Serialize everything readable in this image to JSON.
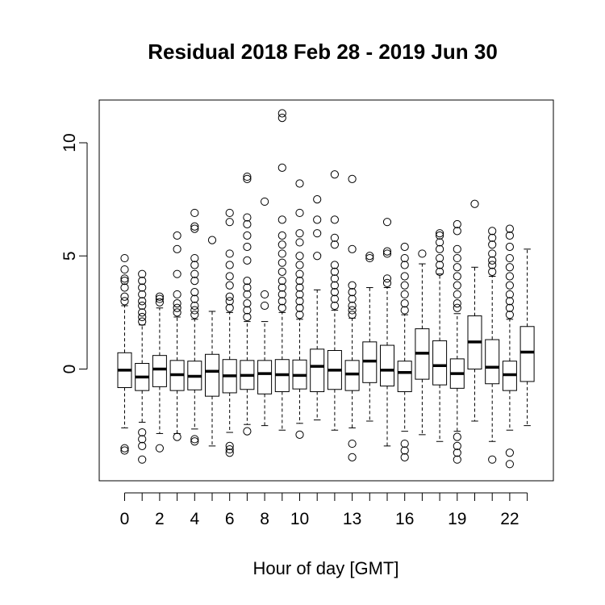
{
  "chart_data": {
    "type": "boxplot",
    "title": "Residual  2018 Feb 28 - 2019 Jun 30",
    "xlabel": "Hour of day [GMT]",
    "ylabel": "",
    "ylim": [
      -4.9,
      12
    ],
    "y_ticks": [
      0,
      5,
      10
    ],
    "x_tick_labels": [
      "0",
      "2",
      "4",
      "6",
      "8",
      "10",
      "13",
      "16",
      "19",
      "22"
    ],
    "x_tick_label_hours": [
      0,
      2,
      4,
      6,
      8,
      10,
      13,
      16,
      19,
      22
    ],
    "grid": false,
    "boxes": [
      {
        "hour": 0,
        "q1": -0.82,
        "median": -0.05,
        "q3": 0.72,
        "whisker_low": -2.6,
        "whisker_high": 2.8,
        "outliers": [
          3.0,
          3.2,
          3.6,
          3.9,
          4.0,
          4.4,
          4.9,
          -3.5,
          -3.6
        ]
      },
      {
        "hour": 1,
        "q1": -0.95,
        "median": -0.35,
        "q3": 0.25,
        "whisker_low": -2.35,
        "whisker_high": 1.95,
        "outliers": [
          2.1,
          2.3,
          2.5,
          2.8,
          3.0,
          3.3,
          3.6,
          3.9,
          4.2,
          -2.8,
          -3.1,
          -3.4,
          -4.0
        ]
      },
      {
        "hour": 2,
        "q1": -0.78,
        "median": 0.0,
        "q3": 0.6,
        "whisker_low": -2.85,
        "whisker_high": 2.7,
        "outliers": [
          2.95,
          3.1,
          3.2,
          -3.5
        ]
      },
      {
        "hour": 3,
        "q1": -0.95,
        "median": -0.25,
        "q3": 0.38,
        "whisker_low": -2.85,
        "whisker_high": 2.3,
        "outliers": [
          2.5,
          2.7,
          2.9,
          3.3,
          4.2,
          5.3,
          5.9,
          -3.0
        ]
      },
      {
        "hour": 4,
        "q1": -0.92,
        "median": -0.32,
        "q3": 0.35,
        "whisker_low": -2.65,
        "whisker_high": 2.2,
        "outliers": [
          2.4,
          2.6,
          2.8,
          3.1,
          3.4,
          3.9,
          4.2,
          4.6,
          4.9,
          6.2,
          6.3,
          6.9,
          -3.1,
          -3.2
        ]
      },
      {
        "hour": 5,
        "q1": -1.2,
        "median": -0.1,
        "q3": 0.65,
        "whisker_low": -3.4,
        "whisker_high": 2.55,
        "outliers": [
          5.7
        ]
      },
      {
        "hour": 6,
        "q1": -1.05,
        "median": -0.3,
        "q3": 0.42,
        "whisker_low": -2.8,
        "whisker_high": 2.5,
        "outliers": [
          2.7,
          3.0,
          3.2,
          3.7,
          4.1,
          4.6,
          5.1,
          6.5,
          6.9,
          -3.4,
          -3.55,
          -3.7
        ]
      },
      {
        "hour": 7,
        "q1": -0.9,
        "median": -0.28,
        "q3": 0.38,
        "whisker_low": -2.45,
        "whisker_high": 2.1,
        "outliers": [
          2.3,
          2.6,
          2.9,
          3.3,
          3.6,
          3.9,
          4.8,
          5.4,
          5.9,
          6.4,
          6.7,
          8.4,
          8.5,
          -2.75
        ]
      },
      {
        "hour": 8,
        "q1": -1.1,
        "median": -0.2,
        "q3": 0.38,
        "whisker_low": -2.5,
        "whisker_high": 2.1,
        "outliers": [
          2.8,
          3.3,
          7.4
        ]
      },
      {
        "hour": 9,
        "q1": -1.0,
        "median": -0.25,
        "q3": 0.42,
        "whisker_low": -2.7,
        "whisker_high": 2.5,
        "outliers": [
          2.7,
          3.0,
          3.3,
          3.6,
          3.9,
          4.3,
          4.7,
          5.1,
          5.5,
          5.9,
          6.6,
          8.9,
          11.1,
          11.3
        ]
      },
      {
        "hour": 10,
        "q1": -0.88,
        "median": -0.28,
        "q3": 0.4,
        "whisker_low": -2.4,
        "whisker_high": 2.2,
        "outliers": [
          2.4,
          2.7,
          3.0,
          3.3,
          3.6,
          3.9,
          4.2,
          4.6,
          5.0,
          5.6,
          6.0,
          6.9,
          8.2,
          -2.9
        ]
      },
      {
        "hour": 11,
        "q1": -1.0,
        "median": 0.12,
        "q3": 0.88,
        "whisker_low": -2.25,
        "whisker_high": 3.5,
        "outliers": [
          5.0,
          6.0,
          6.6,
          7.5
        ]
      },
      {
        "hour": 12,
        "q1": -0.9,
        "median": -0.05,
        "q3": 0.82,
        "whisker_low": -2.7,
        "whisker_high": 2.6,
        "outliers": [
          2.8,
          3.1,
          3.4,
          3.7,
          4.0,
          4.3,
          4.6,
          5.5,
          5.8,
          6.6,
          8.6
        ]
      },
      {
        "hour": 13,
        "q1": -0.95,
        "median": -0.22,
        "q3": 0.38,
        "whisker_low": -2.6,
        "whisker_high": 2.25,
        "outliers": [
          2.4,
          2.6,
          2.8,
          3.1,
          3.4,
          3.7,
          5.3,
          8.4,
          -3.3,
          -3.9
        ]
      },
      {
        "hour": 14,
        "q1": -0.6,
        "median": 0.35,
        "q3": 1.2,
        "whisker_low": -2.3,
        "whisker_high": 3.6,
        "outliers": [
          4.9,
          5.0
        ]
      },
      {
        "hour": 15,
        "q1": -0.75,
        "median": -0.05,
        "q3": 1.05,
        "whisker_low": -3.4,
        "whisker_high": 3.6,
        "outliers": [
          3.8,
          4.0,
          5.1,
          5.2,
          6.5
        ]
      },
      {
        "hour": 16,
        "q1": -1.0,
        "median": -0.15,
        "q3": 0.35,
        "whisker_low": -2.75,
        "whisker_high": 2.4,
        "outliers": [
          2.6,
          2.9,
          3.3,
          3.7,
          4.1,
          4.6,
          4.9,
          5.4,
          -3.3,
          -3.6,
          -3.9
        ]
      },
      {
        "hour": 17,
        "q1": -0.45,
        "median": 0.7,
        "q3": 1.78,
        "whisker_low": -2.9,
        "whisker_high": 4.65,
        "outliers": [
          5.1
        ]
      },
      {
        "hour": 18,
        "q1": -0.7,
        "median": 0.15,
        "q3": 1.25,
        "whisker_low": -3.2,
        "whisker_high": 4.2,
        "outliers": [
          4.3,
          4.6,
          4.9,
          5.3,
          5.6,
          5.9,
          6.0
        ]
      },
      {
        "hour": 19,
        "q1": -0.85,
        "median": -0.2,
        "q3": 0.45,
        "whisker_low": -2.75,
        "whisker_high": 2.45,
        "outliers": [
          2.7,
          2.9,
          3.3,
          3.7,
          4.1,
          4.5,
          4.9,
          5.3,
          6.1,
          6.4,
          -3.0,
          -3.4,
          -3.7,
          -4.0
        ]
      },
      {
        "hour": 20,
        "q1": 0.0,
        "median": 1.2,
        "q3": 2.35,
        "whisker_low": -2.3,
        "whisker_high": 4.5,
        "outliers": [
          7.3
        ]
      },
      {
        "hour": 21,
        "q1": -0.65,
        "median": 0.08,
        "q3": 1.3,
        "whisker_low": -3.2,
        "whisker_high": 4.1,
        "outliers": [
          4.3,
          4.6,
          4.8,
          5.1,
          5.5,
          5.8,
          6.1,
          -4.0
        ]
      },
      {
        "hour": 22,
        "q1": -0.95,
        "median": -0.25,
        "q3": 0.35,
        "whisker_low": -2.7,
        "whisker_high": 2.2,
        "outliers": [
          2.4,
          2.7,
          3.0,
          3.3,
          3.7,
          4.1,
          4.5,
          4.9,
          5.4,
          5.9,
          6.2,
          -3.7,
          -4.2
        ]
      },
      {
        "hour": 23,
        "q1": -0.55,
        "median": 0.75,
        "q3": 1.88,
        "whisker_low": -2.5,
        "whisker_high": 5.3,
        "outliers": []
      }
    ]
  }
}
